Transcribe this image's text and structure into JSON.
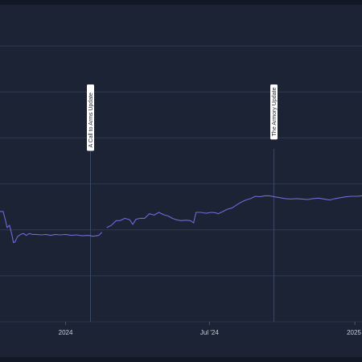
{
  "chart_data": {
    "type": "line",
    "title": "",
    "xlabel": "",
    "ylabel": "",
    "x_ticks": [
      {
        "date": "2024-01-01",
        "label": "2024"
      },
      {
        "date": "2024-07-01",
        "label": "Jul '24"
      },
      {
        "date": "2025-01-01",
        "label": "2025"
      }
    ],
    "xlim": [
      "2023-10-10",
      "2025-01-10"
    ],
    "ylim": [
      0,
      7
    ],
    "y_gridlines": [
      1,
      2,
      3,
      4,
      5,
      6
    ],
    "grid": true,
    "legend": "none",
    "annotations": [
      {
        "date": "2024-02-01",
        "label": "A Call to Arms Update"
      },
      {
        "date": "2024-09-20",
        "label": "The Armory Update"
      }
    ],
    "series": [
      {
        "color": "#6f6ad8",
        "segments": [
          [
            [
              "2023-10-10",
              2.4
            ],
            [
              "2023-10-14",
              2.4
            ],
            [
              "2023-10-17",
              2.2
            ],
            [
              "2023-10-19",
              2.05
            ],
            [
              "2023-10-22",
              2.1
            ],
            [
              "2023-10-25",
              1.9
            ],
            [
              "2023-10-27",
              1.72
            ],
            [
              "2023-10-29",
              1.74
            ],
            [
              "2023-11-01",
              1.85
            ],
            [
              "2023-11-05",
              1.9
            ],
            [
              "2023-11-09",
              1.92
            ],
            [
              "2023-11-12",
              1.88
            ],
            [
              "2023-11-16",
              1.92
            ],
            [
              "2023-11-20",
              1.9
            ],
            [
              "2023-11-25",
              1.9
            ],
            [
              "2023-12-01",
              1.89
            ],
            [
              "2023-12-07",
              1.9
            ],
            [
              "2023-12-13",
              1.88
            ],
            [
              "2023-12-19",
              1.9
            ],
            [
              "2023-12-25",
              1.89
            ],
            [
              "2024-01-01",
              1.9
            ],
            [
              "2024-01-08",
              1.88
            ],
            [
              "2024-01-15",
              1.89
            ],
            [
              "2024-01-22",
              1.87
            ],
            [
              "2024-01-30",
              1.88
            ],
            [
              "2024-02-05",
              1.86
            ],
            [
              "2024-02-12",
              1.88
            ],
            [
              "2024-02-16",
              1.95
            ]
          ],
          [
            [
              "2024-02-22",
              2.05
            ],
            [
              "2024-02-28",
              2.1
            ],
            [
              "2024-03-05",
              2.2
            ],
            [
              "2024-03-10",
              2.2
            ],
            [
              "2024-03-16",
              2.25
            ],
            [
              "2024-03-22",
              2.22
            ],
            [
              "2024-03-26",
              2.12
            ],
            [
              "2024-03-30",
              2.23
            ],
            [
              "2024-04-04",
              2.25
            ],
            [
              "2024-04-10",
              2.25
            ],
            [
              "2024-04-16",
              2.35
            ],
            [
              "2024-04-22",
              2.32
            ],
            [
              "2024-04-28",
              2.38
            ],
            [
              "2024-05-04",
              2.33
            ],
            [
              "2024-05-10",
              2.3
            ],
            [
              "2024-05-15",
              2.25
            ],
            [
              "2024-05-20",
              2.22
            ],
            [
              "2024-05-26",
              2.2
            ],
            [
              "2024-06-01",
              2.21
            ],
            [
              "2024-06-07",
              2.2
            ],
            [
              "2024-06-11",
              2.15
            ],
            [
              "2024-06-14",
              2.38
            ],
            [
              "2024-06-20",
              2.38
            ],
            [
              "2024-06-27",
              2.36
            ],
            [
              "2024-07-03",
              2.38
            ],
            [
              "2024-07-09",
              2.37
            ],
            [
              "2024-07-12",
              2.35
            ],
            [
              "2024-07-18",
              2.4
            ],
            [
              "2024-07-24",
              2.45
            ],
            [
              "2024-07-30",
              2.48
            ],
            [
              "2024-08-05",
              2.55
            ],
            [
              "2024-08-10",
              2.6
            ],
            [
              "2024-08-16",
              2.65
            ],
            [
              "2024-08-22",
              2.68
            ],
            [
              "2024-08-28",
              2.73
            ],
            [
              "2024-09-03",
              2.72
            ],
            [
              "2024-09-09",
              2.74
            ],
            [
              "2024-09-15",
              2.74
            ],
            [
              "2024-09-21",
              2.72
            ],
            [
              "2024-09-28",
              2.7
            ],
            [
              "2024-10-05",
              2.68
            ],
            [
              "2024-10-12",
              2.67
            ],
            [
              "2024-10-19",
              2.68
            ],
            [
              "2024-10-26",
              2.67
            ],
            [
              "2024-11-02",
              2.66
            ],
            [
              "2024-11-09",
              2.68
            ],
            [
              "2024-11-16",
              2.69
            ],
            [
              "2024-11-23",
              2.67
            ],
            [
              "2024-11-30",
              2.65
            ],
            [
              "2024-12-07",
              2.68
            ],
            [
              "2024-12-14",
              2.7
            ],
            [
              "2024-12-21",
              2.72
            ],
            [
              "2024-12-28",
              2.73
            ],
            [
              "2025-01-04",
              2.73
            ],
            [
              "2025-01-10",
              2.74
            ]
          ]
        ]
      }
    ]
  }
}
